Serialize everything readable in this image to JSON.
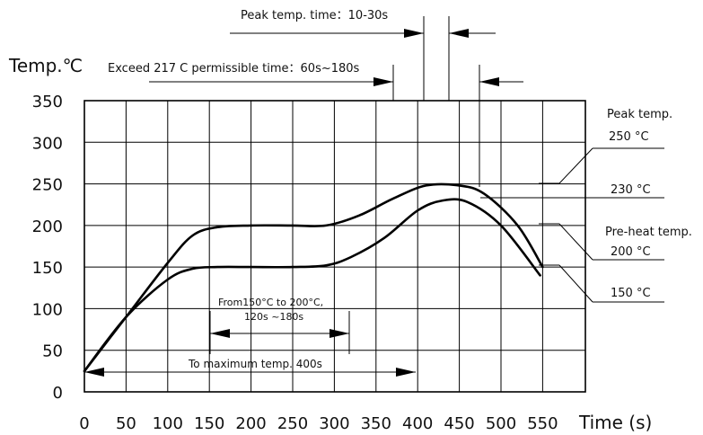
{
  "chart_data": {
    "type": "line",
    "ylabel": "Temp.℃",
    "xlabel": "Time (s)",
    "xlim": [
      0,
      600
    ],
    "ylim": [
      0,
      350
    ],
    "x_ticks": [
      0,
      50,
      100,
      150,
      200,
      250,
      300,
      350,
      400,
      450,
      500,
      550
    ],
    "y_ticks": [
      0,
      50,
      100,
      150,
      200,
      250,
      300,
      350
    ],
    "grid": true,
    "series": [
      {
        "values": [
          [
            0,
            25
          ],
          [
            50,
            90
          ],
          [
            100,
            155
          ],
          [
            130,
            188
          ],
          [
            160,
            198
          ],
          [
            200,
            200
          ],
          [
            250,
            200
          ],
          [
            290,
            200
          ],
          [
            330,
            212
          ],
          [
            370,
            232
          ],
          [
            410,
            248
          ],
          [
            450,
            248
          ],
          [
            480,
            238
          ],
          [
            520,
            200
          ],
          [
            550,
            150
          ]
        ]
      },
      {
        "values": [
          [
            0,
            25
          ],
          [
            50,
            90
          ],
          [
            100,
            135
          ],
          [
            130,
            148
          ],
          [
            160,
            150
          ],
          [
            200,
            150
          ],
          [
            250,
            150
          ],
          [
            290,
            152
          ],
          [
            320,
            162
          ],
          [
            360,
            185
          ],
          [
            400,
            218
          ],
          [
            430,
            230
          ],
          [
            460,
            228
          ],
          [
            500,
            200
          ],
          [
            547,
            140
          ]
        ]
      }
    ],
    "annotations": {
      "peak_time": "Peak temp. time：10-30s",
      "exceed_time": "Exceed 217 C permissible time：60s~180s",
      "preheat_range_1": "From150°C to 200°C,",
      "preheat_range_2": "120s ~180s",
      "to_max": "To maximum temp.  400s",
      "peak_label": "Peak temp.",
      "peak_250": "250 °C",
      "peak_230": "230 °C",
      "preheat_label": "Pre-heat temp.",
      "preheat_200": "200 °C",
      "preheat_150": "150 °C"
    }
  }
}
